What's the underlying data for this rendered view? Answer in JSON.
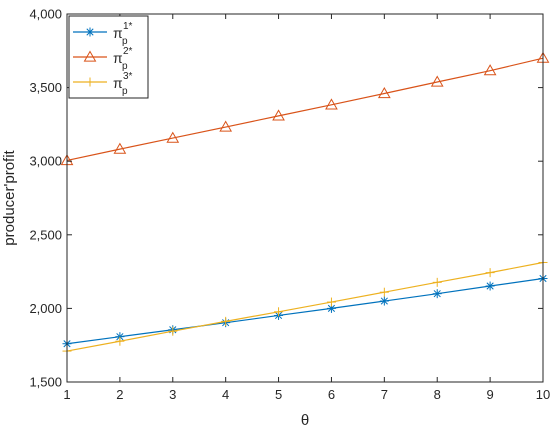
{
  "chart_data": {
    "type": "line",
    "title": "",
    "xlabel": "θ",
    "ylabel": "producer'profit",
    "xlim": [
      1,
      10
    ],
    "ylim": [
      1500,
      4000
    ],
    "x_ticks": [
      1,
      2,
      3,
      4,
      5,
      6,
      7,
      8,
      9,
      10
    ],
    "y_ticks": [
      1500,
      2000,
      2500,
      3000,
      3500,
      4000
    ],
    "y_tick_labels": [
      "1,500",
      "2,000",
      "2,500",
      "3,000",
      "3,500",
      "4,000"
    ],
    "grid": false,
    "legend_position": "top-left",
    "x": [
      1,
      2,
      3,
      4,
      5,
      6,
      7,
      8,
      9,
      10
    ],
    "series": [
      {
        "name": "π_p^1*",
        "legend": {
          "base": "π",
          "sub": "p",
          "sup": "1*"
        },
        "marker": "asterisk",
        "color": "#0072BD",
        "values": [
          1760,
          1808,
          1855,
          1903,
          1952,
          2000,
          2050,
          2100,
          2152,
          2203
        ]
      },
      {
        "name": "π_p^2*",
        "legend": {
          "base": "π",
          "sub": "p",
          "sup": "2*"
        },
        "marker": "triangle",
        "color": "#D95319",
        "values": [
          3005,
          3082,
          3157,
          3232,
          3308,
          3383,
          3460,
          3538,
          3615,
          3700
        ]
      },
      {
        "name": "π_p^3*",
        "legend": {
          "base": "π",
          "sub": "p",
          "sup": "3*"
        },
        "marker": "plus",
        "color": "#EDB120",
        "values": [
          1710,
          1777,
          1845,
          1912,
          1977,
          2043,
          2110,
          2177,
          2243,
          2312
        ]
      }
    ]
  }
}
